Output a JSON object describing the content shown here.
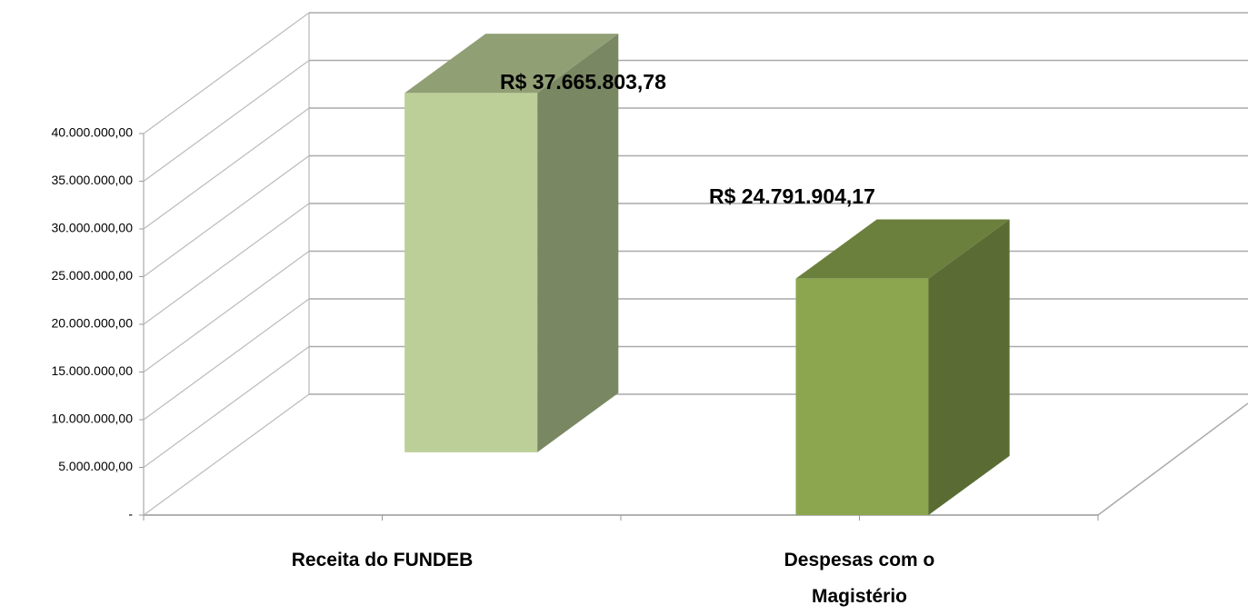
{
  "chart_data": {
    "type": "bar3d",
    "categories": [
      "Receita do FUNDEB",
      "Despesas com o Magistério"
    ],
    "values": [
      37665803.78,
      24791904.17
    ],
    "value_labels": [
      "R$ 37.665.803,78",
      "R$ 24.791.904,17"
    ],
    "colors": [
      "#bccf98",
      "#8ba64f"
    ],
    "ylim": [
      0,
      40000000
    ],
    "yticks": [
      {
        "value": 0,
        "label": "-"
      },
      {
        "value": 5000000,
        "label": "5.000.000,00"
      },
      {
        "value": 10000000,
        "label": "10.000.000,00"
      },
      {
        "value": 15000000,
        "label": "15.000.000,00"
      },
      {
        "value": 20000000,
        "label": "20.000.000,00"
      },
      {
        "value": 25000000,
        "label": "25.000.000,00"
      },
      {
        "value": 30000000,
        "label": "30.000.000,00"
      },
      {
        "value": 35000000,
        "label": "35.000.000,00"
      },
      {
        "value": 40000000,
        "label": "40.000.000,00"
      }
    ],
    "grid": true
  }
}
